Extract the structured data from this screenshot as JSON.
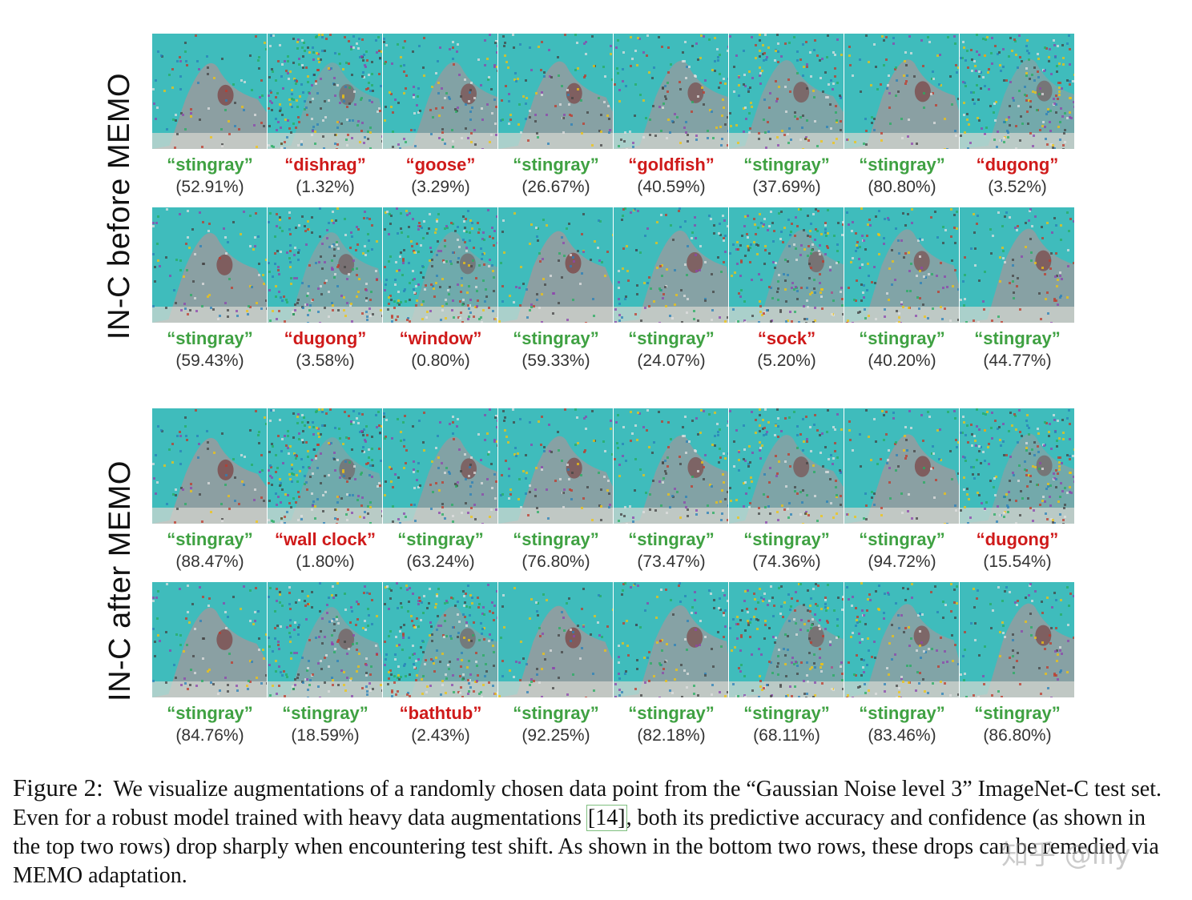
{
  "sections": [
    {
      "label": "IN-C before MEMO",
      "rows": [
        [
          {
            "label": "“stingray”",
            "pct": "(52.91%)",
            "correct": true,
            "noise": 0.3
          },
          {
            "label": "“dishrag”",
            "pct": "(1.32%)",
            "correct": false,
            "noise": 0.95
          },
          {
            "label": "“goose”",
            "pct": "(3.29%)",
            "correct": false,
            "noise": 0.5
          },
          {
            "label": "“stingray”",
            "pct": "(26.67%)",
            "correct": true,
            "noise": 0.4
          },
          {
            "label": "“goldfish”",
            "pct": "(40.59%)",
            "correct": false,
            "noise": 0.5
          },
          {
            "label": "“stingray”",
            "pct": "(37.69%)",
            "correct": true,
            "noise": 0.6
          },
          {
            "label": "“stingray”",
            "pct": "(80.80%)",
            "correct": true,
            "noise": 0.35
          },
          {
            "label": "“dugong”",
            "pct": "(3.52%)",
            "correct": false,
            "noise": 0.85
          }
        ],
        [
          {
            "label": "“stingray”",
            "pct": "(59.43%)",
            "correct": true,
            "noise": 0.35
          },
          {
            "label": "“dugong”",
            "pct": "(3.58%)",
            "correct": false,
            "noise": 0.75
          },
          {
            "label": "“window”",
            "pct": "(0.80%)",
            "correct": false,
            "noise": 0.95
          },
          {
            "label": "“stingray”",
            "pct": "(59.33%)",
            "correct": true,
            "noise": 0.3
          },
          {
            "label": "“stingray”",
            "pct": "(24.07%)",
            "correct": true,
            "noise": 0.45
          },
          {
            "label": "“sock”",
            "pct": "(5.20%)",
            "correct": false,
            "noise": 0.8
          },
          {
            "label": "“stingray”",
            "pct": "(40.20%)",
            "correct": true,
            "noise": 0.55
          },
          {
            "label": "“stingray”",
            "pct": "(44.77%)",
            "correct": true,
            "noise": 0.4
          }
        ]
      ]
    },
    {
      "label": "IN-C after MEMO",
      "rows": [
        [
          {
            "label": "“stingray”",
            "pct": "(88.47%)",
            "correct": true,
            "noise": 0.3
          },
          {
            "label": "“wall clock”",
            "pct": "(1.80%)",
            "correct": false,
            "noise": 0.95
          },
          {
            "label": "“stingray”",
            "pct": "(63.24%)",
            "correct": true,
            "noise": 0.5
          },
          {
            "label": "“stingray”",
            "pct": "(76.80%)",
            "correct": true,
            "noise": 0.4
          },
          {
            "label": "“stingray”",
            "pct": "(73.47%)",
            "correct": true,
            "noise": 0.5
          },
          {
            "label": "“stingray”",
            "pct": "(74.36%)",
            "correct": true,
            "noise": 0.6
          },
          {
            "label": "“stingray”",
            "pct": "(94.72%)",
            "correct": true,
            "noise": 0.35
          },
          {
            "label": "“dugong”",
            "pct": "(15.54%)",
            "correct": false,
            "noise": 0.85
          }
        ],
        [
          {
            "label": "“stingray”",
            "pct": "(84.76%)",
            "correct": true,
            "noise": 0.35
          },
          {
            "label": "“stingray”",
            "pct": "(18.59%)",
            "correct": true,
            "noise": 0.75
          },
          {
            "label": "“bathtub”",
            "pct": "(2.43%)",
            "correct": false,
            "noise": 0.95
          },
          {
            "label": "“stingray”",
            "pct": "(92.25%)",
            "correct": true,
            "noise": 0.3
          },
          {
            "label": "“stingray”",
            "pct": "(82.18%)",
            "correct": true,
            "noise": 0.45
          },
          {
            "label": "“stingray”",
            "pct": "(68.11%)",
            "correct": true,
            "noise": 0.8
          },
          {
            "label": "“stingray”",
            "pct": "(83.46%)",
            "correct": true,
            "noise": 0.55
          },
          {
            "label": "“stingray”",
            "pct": "(86.80%)",
            "correct": true,
            "noise": 0.4
          }
        ]
      ]
    }
  ],
  "caption": {
    "figure_label": "Figure 2:",
    "text_before_cite": "We visualize augmentations of a randomly chosen data point from the “Gaussian Noise level 3” ImageNet-C test set. Even for a robust model trained with heavy data augmentations ",
    "cite": "[14]",
    "text_after_cite": ", both its predictive accuracy and confidence (as shown in the top two rows) drop sharply when encountering test shift. As shown in the bottom two rows, these drops can be remedied via MEMO adaptation."
  },
  "watermark": "知乎 @lily",
  "colors": {
    "correct": "#3fa142",
    "wrong": "#cf1a1a",
    "water": "#3fbcbc",
    "ray": "#9a9a9e"
  }
}
